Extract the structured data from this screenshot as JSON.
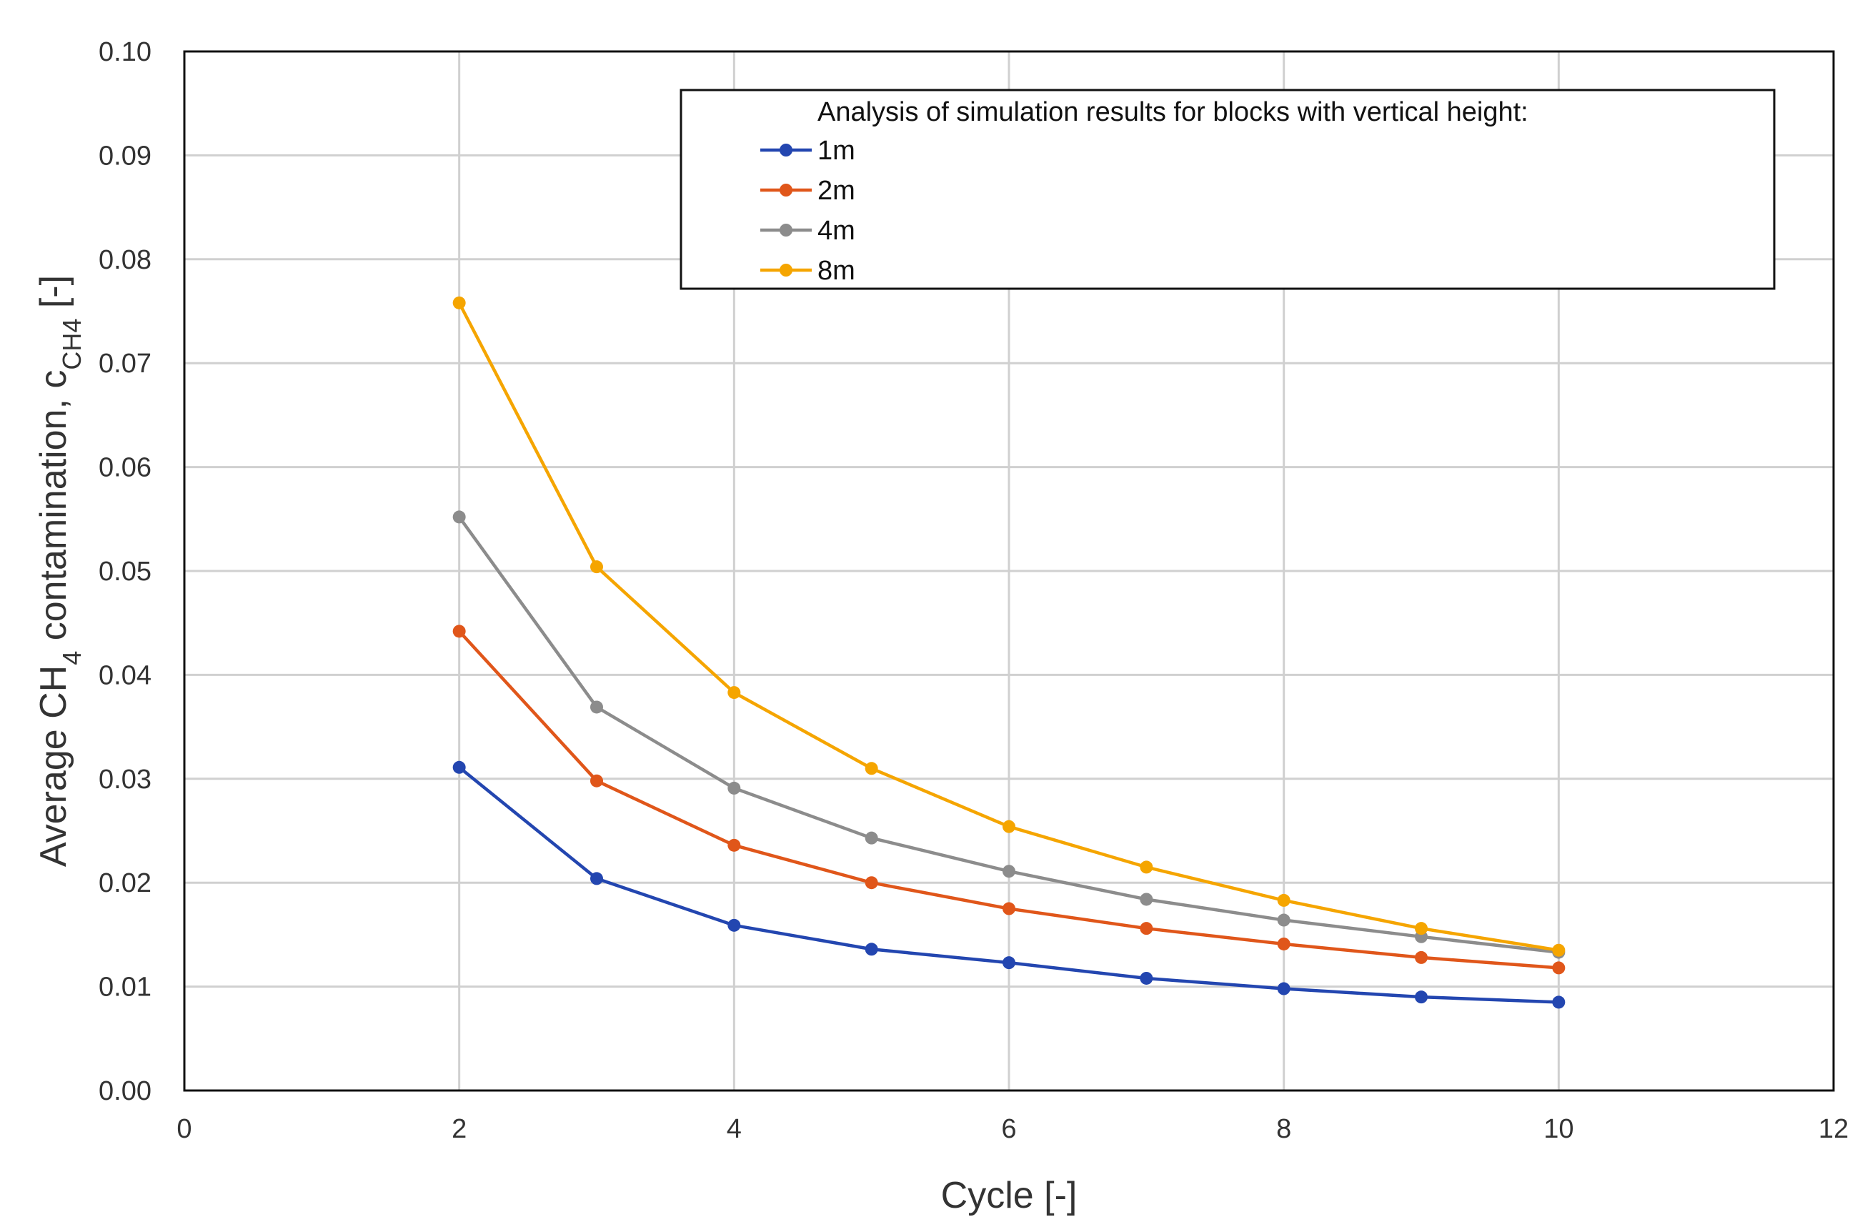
{
  "chart_data": {
    "type": "line",
    "title": "",
    "xlabel": "Cycle [-]",
    "ylabel": {
      "prefix": "Average CH",
      "prefix_sub": "4",
      "middle": " contamination, c",
      "symbol_sub": "CH4",
      "suffix": " [-]"
    },
    "xlim": [
      0,
      12
    ],
    "ylim": [
      0,
      0.1
    ],
    "x_ticks": [
      "0",
      "2",
      "4",
      "6",
      "8",
      "10",
      "12"
    ],
    "y_ticks": [
      "0.00",
      "0.01",
      "0.02",
      "0.03",
      "0.04",
      "0.05",
      "0.06",
      "0.07",
      "0.08",
      "0.09",
      "0.10"
    ],
    "grid": true,
    "legend": {
      "title": "Analysis of simulation results for blocks with vertical height:",
      "position": "top-right"
    },
    "x": [
      2,
      3,
      4,
      5,
      6,
      7,
      8,
      9,
      10
    ],
    "series": [
      {
        "name": "1m",
        "color": "#2346B0",
        "values": [
          0.0311,
          0.0204,
          0.0159,
          0.0136,
          0.0123,
          0.0108,
          0.0098,
          0.009,
          0.0085
        ]
      },
      {
        "name": "2m",
        "color": "#E0561A",
        "values": [
          0.0442,
          0.0298,
          0.0236,
          0.02,
          0.0175,
          0.0156,
          0.0141,
          0.0128,
          0.0118
        ]
      },
      {
        "name": "4m",
        "color": "#8C8C8C",
        "values": [
          0.0552,
          0.0369,
          0.0291,
          0.0243,
          0.0211,
          0.0184,
          0.0164,
          0.0148,
          0.0133
        ]
      },
      {
        "name": "8m",
        "color": "#F5A500",
        "values": [
          0.0758,
          0.0504,
          0.0383,
          0.031,
          0.0254,
          0.0215,
          0.0183,
          0.0156,
          0.0135
        ]
      }
    ]
  }
}
